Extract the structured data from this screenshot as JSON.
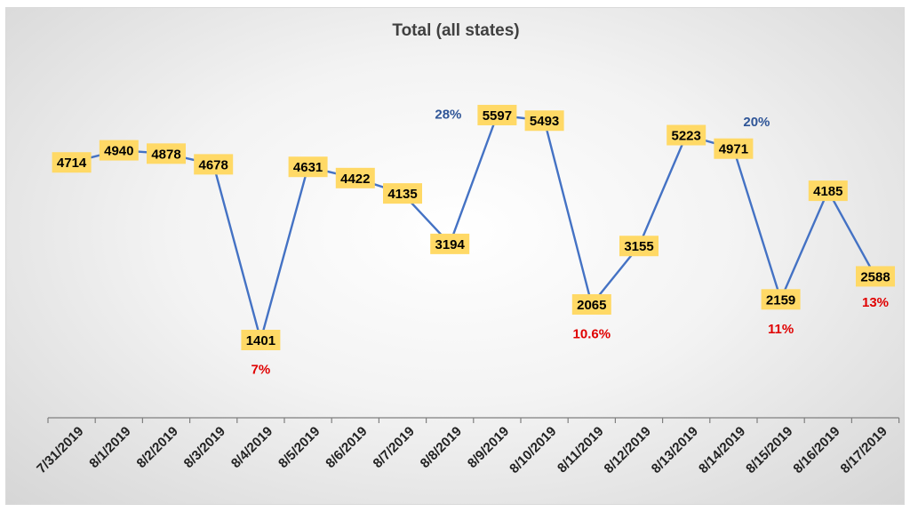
{
  "chart_data": {
    "type": "line",
    "title": "Total (all states)",
    "categories": [
      "7/31/2019",
      "8/1/2019",
      "8/2/2019",
      "8/3/2019",
      "8/4/2019",
      "8/5/2019",
      "8/6/2019",
      "8/7/2019",
      "8/8/2019",
      "8/9/2019",
      "8/10/2019",
      "8/11/2019",
      "8/12/2019",
      "8/13/2019",
      "8/14/2019",
      "8/15/2019",
      "8/16/2019",
      "8/17/2019"
    ],
    "series": [
      {
        "values": [
          4714,
          4940,
          4878,
          4678,
          1401,
          4631,
          4422,
          4135,
          3194,
          5597,
          5493,
          2065,
          3155,
          5223,
          4971,
          2159,
          4185,
          2588
        ],
        "color": "#4472c4"
      }
    ],
    "ylim": [
      0,
      6500
    ],
    "grid": false,
    "legend": "none",
    "data_label_color": "#ffd966",
    "annotations": [
      {
        "text": "28%",
        "index": 9,
        "color": "#2f5597"
      },
      {
        "text": "20%",
        "index": 14,
        "color": "#2f5597"
      },
      {
        "text": "7%",
        "index": 4,
        "color": "#e00000"
      },
      {
        "text": "10.6%",
        "index": 11,
        "color": "#e00000"
      },
      {
        "text": "11%",
        "index": 15,
        "color": "#e00000"
      },
      {
        "text": "13%",
        "index": 17,
        "color": "#e00000"
      }
    ]
  }
}
